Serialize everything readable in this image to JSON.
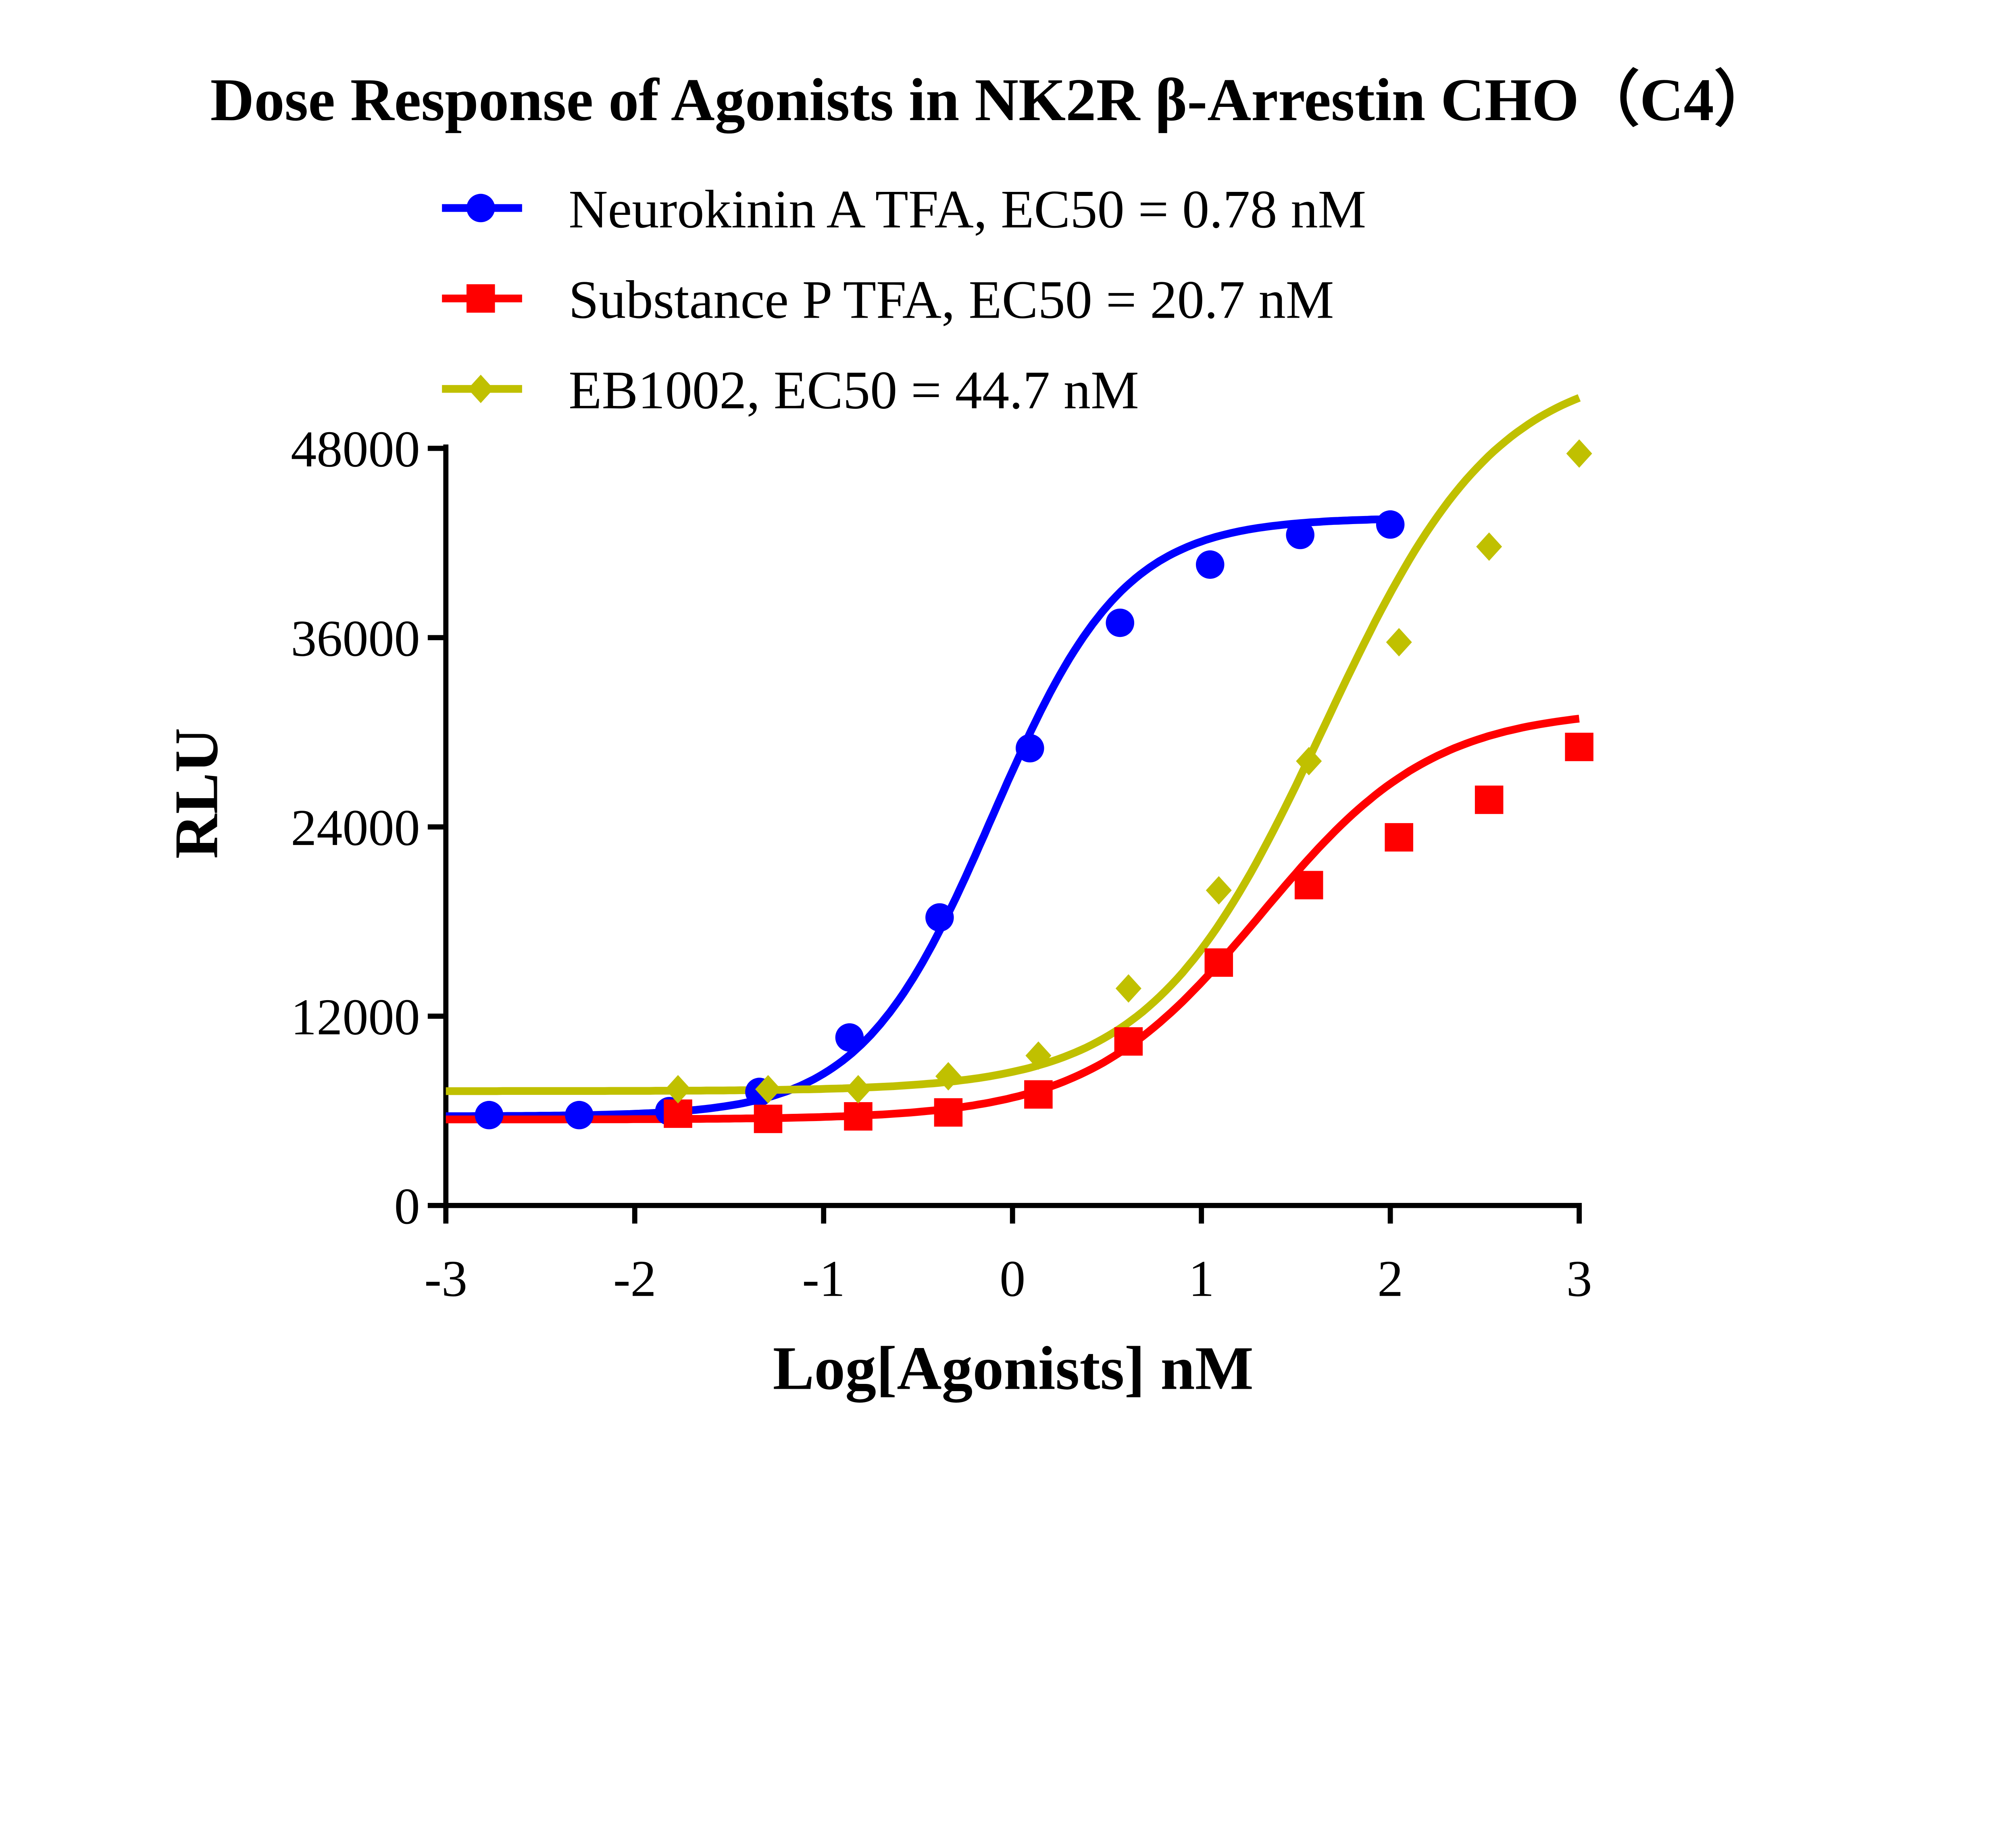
{
  "chart_data": {
    "type": "scatter",
    "title": "Dose Response of Agonists in NK2R β-Arrestin CHO（C4）",
    "xlabel": "Log[Agonists] nM",
    "ylabel": "RLU",
    "xlim": [
      -3,
      3
    ],
    "ylim": [
      0,
      48000
    ],
    "xticks": [
      "-3",
      "-2",
      "-1",
      "0",
      "1",
      "2",
      "3"
    ],
    "yticks": [
      "0",
      "12000",
      "24000",
      "36000",
      "48000"
    ],
    "grid": false,
    "legend_position": "top",
    "series": [
      {
        "name": "Neurokinin A TFA, EC50 = 0.78 nM",
        "color": "#0000ff",
        "marker": "circle",
        "x": [
          -2.771,
          -2.294,
          -1.817,
          -1.34,
          -0.863,
          -0.386,
          0.092,
          0.569,
          1.046,
          1.523,
          2.0
        ],
        "y": [
          5730,
          5730,
          5980,
          7200,
          10650,
          18260,
          28990,
          36940,
          40630,
          42510,
          43170
        ]
      },
      {
        "name": "Substance P TFA, EC50 = 20.7 nM",
        "color": "#ff0000",
        "marker": "square",
        "x": [
          -1.771,
          -1.294,
          -0.817,
          -0.34,
          0.137,
          0.614,
          1.092,
          1.569,
          2.046,
          2.523,
          3.0
        ],
        "y": [
          5820,
          5490,
          5650,
          5900,
          7040,
          10400,
          15400,
          20310,
          23340,
          25720,
          29070
        ]
      },
      {
        "name": "EB1002, EC50 = 44.7 nM",
        "color": "#c0c000",
        "marker": "diamond",
        "x": [
          -1.771,
          -1.294,
          -0.817,
          -0.34,
          0.137,
          0.614,
          1.092,
          1.569,
          2.046,
          2.523,
          3.0
        ],
        "y": [
          7370,
          7370,
          7370,
          8190,
          9500,
          13760,
          19980,
          28170,
          35710,
          41770,
          47670
        ]
      }
    ]
  }
}
